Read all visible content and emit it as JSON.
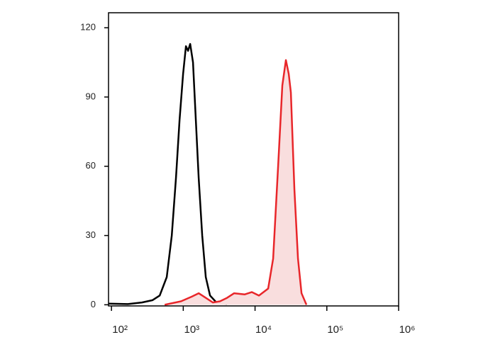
{
  "chart_data": {
    "type": "line",
    "xscale": "log",
    "xlim": [
      91,
      1000000
    ],
    "ylim": [
      -0.5,
      126.5
    ],
    "xticks": [
      {
        "value": 100,
        "label": "10²"
      },
      {
        "value": 1000,
        "label": "10³"
      },
      {
        "value": 10000,
        "label": "10⁴"
      },
      {
        "value": 100000,
        "label": "10⁵"
      },
      {
        "value": 1000000,
        "label": "10⁶"
      }
    ],
    "yticks": [
      0,
      30,
      60,
      90,
      120
    ],
    "series": [
      {
        "color": "#000000",
        "fill": null,
        "x": [
          91,
          169,
          266,
          374,
          470,
          589,
          692,
          792,
          888,
          995,
          1090,
          1166,
          1249,
          1367,
          1497,
          1640,
          1837,
          2059,
          2361,
          2897,
          4074
        ],
        "values": [
          0.5,
          0.3,
          1,
          2,
          4,
          12,
          30,
          55,
          80,
          100,
          112,
          110,
          113,
          105,
          80,
          55,
          30,
          12,
          4,
          1,
          0.3
        ]
      },
      {
        "color": "#e8262a",
        "fill": "#f9dede",
        "x": [
          551,
          929,
          1306,
          1640,
          2059,
          2582,
          3243,
          4074,
          5117,
          7194,
          9036,
          11330,
          15230,
          17870,
          20960,
          23990,
          26900,
          29460,
          31540,
          35330,
          39630,
          44390,
          52000
        ],
        "values": [
          0,
          1.5,
          3.5,
          5,
          3,
          1,
          1.5,
          3,
          5,
          4.5,
          5.5,
          4,
          7,
          20,
          60,
          95,
          106,
          100,
          92,
          50,
          20,
          5,
          0
        ]
      }
    ]
  }
}
